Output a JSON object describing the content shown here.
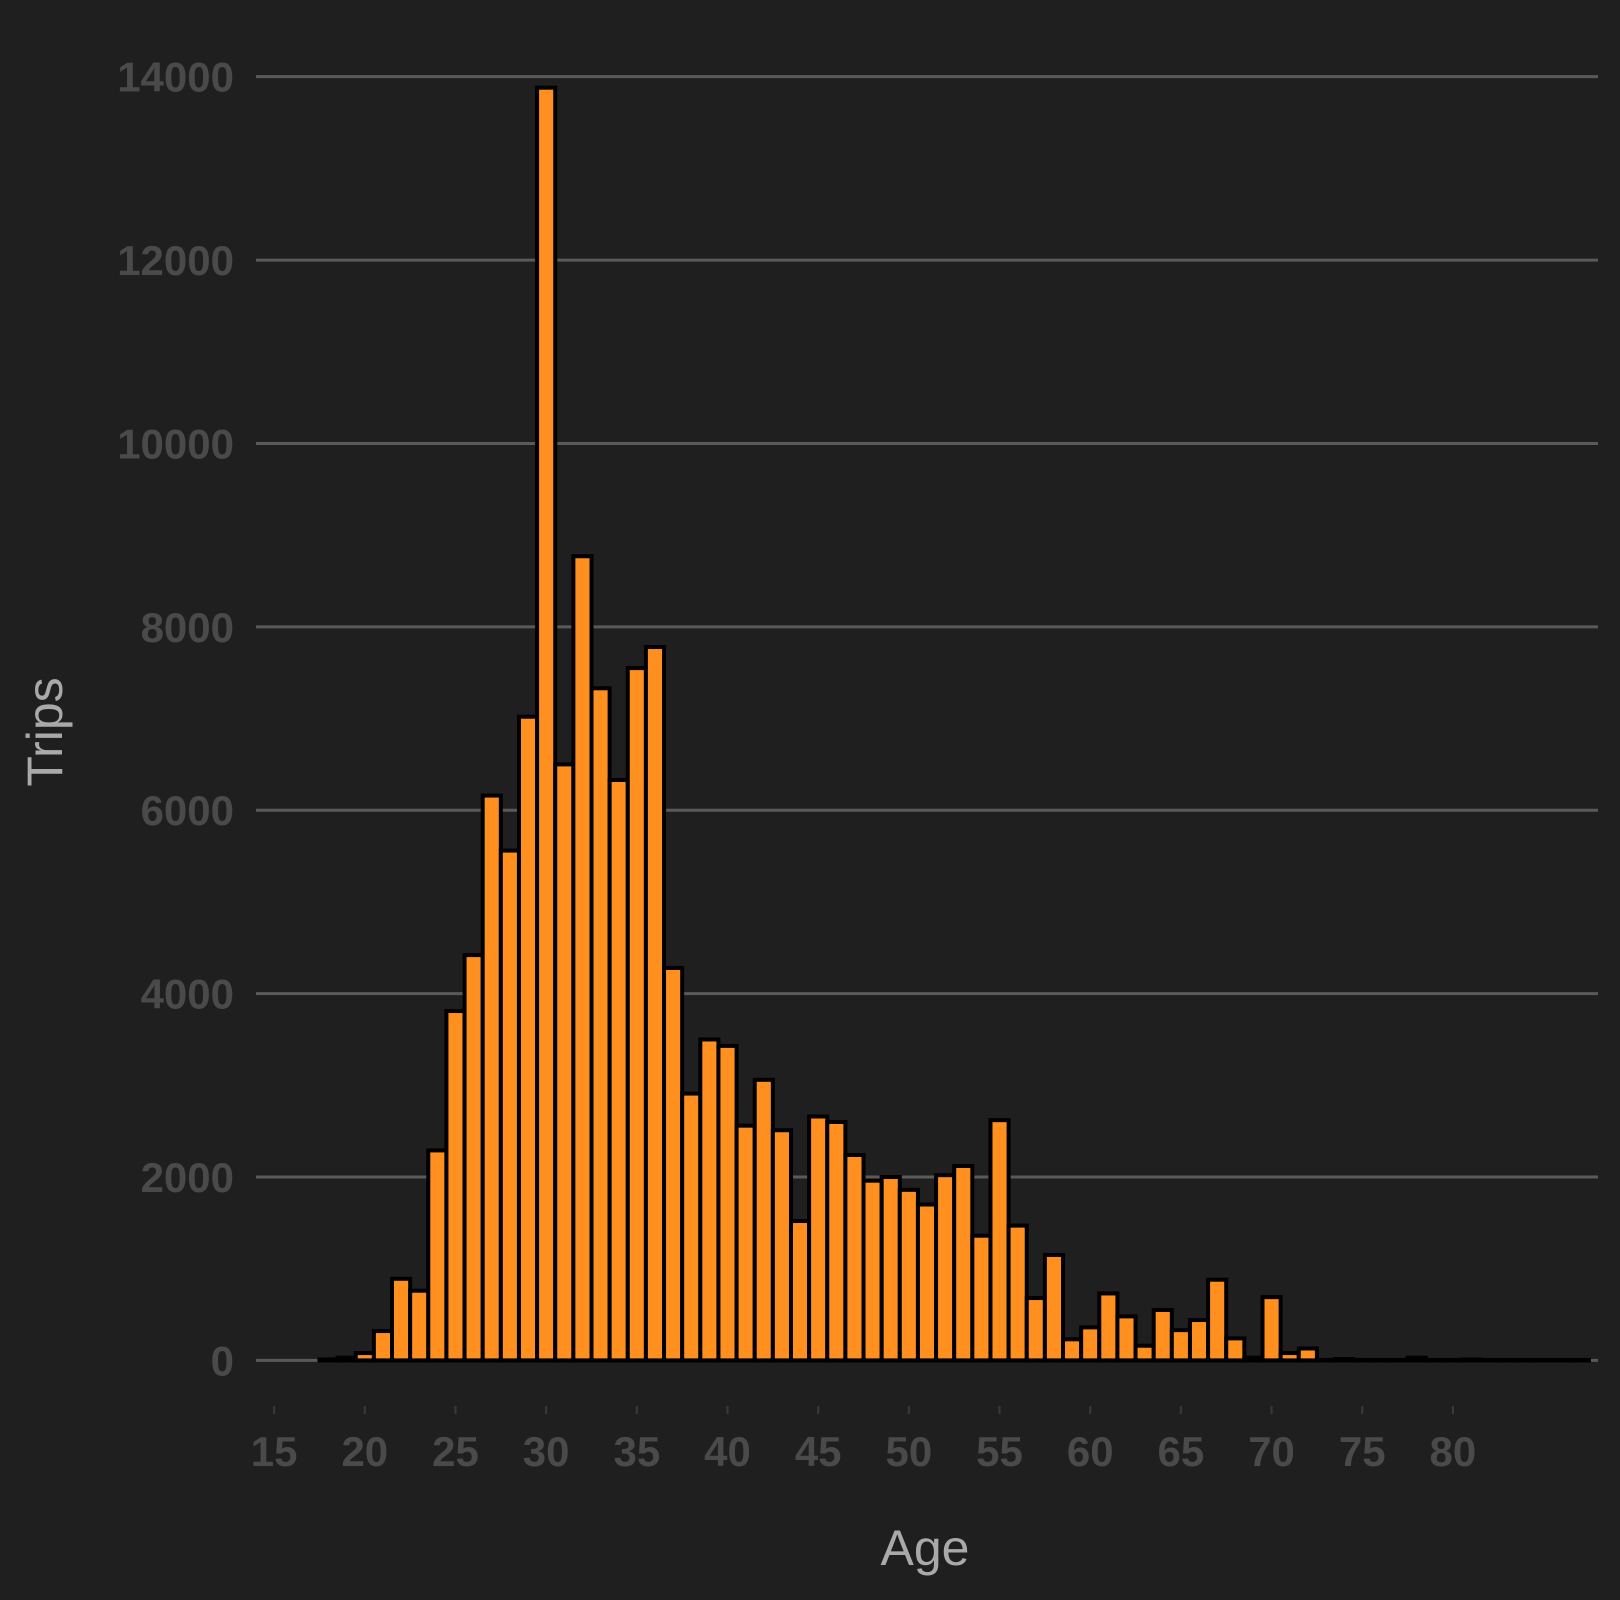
{
  "chart_data": {
    "type": "bar",
    "title": "",
    "xlabel": "Age",
    "ylabel": "Trips",
    "xlim": [
      14,
      88
    ],
    "ylim": [
      -650,
      14400
    ],
    "x_ticks": [
      15,
      20,
      25,
      30,
      35,
      40,
      45,
      50,
      55,
      60,
      65,
      70,
      75,
      80
    ],
    "y_ticks": [
      0,
      2000,
      4000,
      6000,
      8000,
      10000,
      12000,
      14000
    ],
    "y_tick_labels": [
      "0",
      "2000",
      "4000",
      "6000",
      "8000",
      "10000",
      "12000",
      "14000"
    ],
    "x_tick_labels": [
      "15",
      "20",
      "25",
      "30",
      "35",
      "40",
      "45",
      "50",
      "55",
      "60",
      "65",
      "70",
      "75",
      "80"
    ],
    "bin_width": 1,
    "grid": "horizontal",
    "x": [
      18,
      19,
      20,
      21,
      22,
      23,
      24,
      25,
      26,
      27,
      28,
      29,
      30,
      31,
      32,
      33,
      34,
      35,
      36,
      37,
      38,
      39,
      40,
      41,
      42,
      43,
      44,
      45,
      46,
      47,
      48,
      49,
      50,
      51,
      52,
      53,
      54,
      55,
      56,
      57,
      58,
      59,
      60,
      61,
      62,
      63,
      64,
      65,
      66,
      67,
      68,
      69,
      70,
      71,
      72,
      73,
      74,
      75,
      76,
      77,
      78,
      79,
      80,
      81,
      82,
      83,
      84,
      85,
      86,
      87
    ],
    "values": [
      10,
      30,
      80,
      320,
      890,
      760,
      2290,
      3810,
      4420,
      6160,
      5560,
      7020,
      13880,
      6500,
      8770,
      7330,
      6330,
      7550,
      7780,
      4280,
      2910,
      3500,
      3430,
      2560,
      3060,
      2510,
      1520,
      2660,
      2600,
      2240,
      1960,
      2000,
      1860,
      1700,
      2020,
      2120,
      1360,
      2620,
      1470,
      680,
      1150,
      230,
      360,
      730,
      480,
      160,
      550,
      330,
      440,
      880,
      240,
      30,
      690,
      80,
      130,
      5,
      15,
      5,
      5,
      5,
      30,
      5,
      5,
      10,
      5,
      5,
      5,
      5,
      5,
      5
    ],
    "colors": {
      "background": "#1f1f1f",
      "bar_fill": "#ff8f1f",
      "bar_stroke": "#000000",
      "grid": "#5a5a5a",
      "tick_text": "#4a4a4a",
      "axis_title": "#a9a9a9"
    }
  }
}
